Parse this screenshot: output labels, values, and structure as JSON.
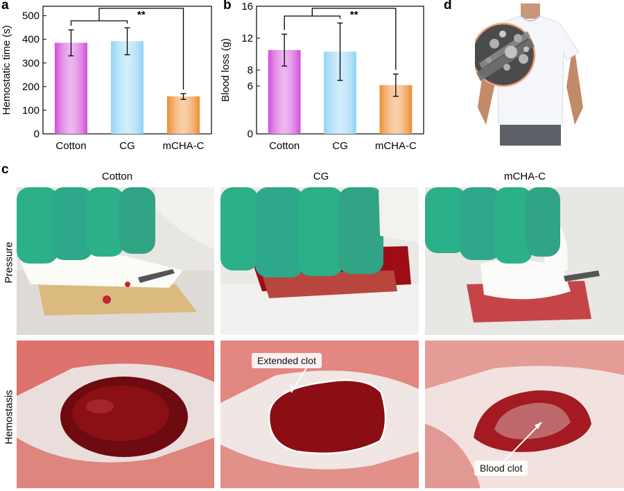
{
  "panels": {
    "a": {
      "letter": "a"
    },
    "b": {
      "letter": "b"
    },
    "c": {
      "letter": "c"
    },
    "d": {
      "letter": "d"
    }
  },
  "photo_grid": {
    "columns": [
      "Cotton",
      "CG",
      "mCHA-C"
    ],
    "rows": [
      "Pressure",
      "Hemostasis"
    ],
    "annotations": {
      "extended_clot": "Extended clot",
      "blood_clot": "Blood clot"
    }
  },
  "colors": {
    "cotton": "#d14cd9",
    "cg": "#8fd3f5",
    "mcha": "#f08a2e",
    "glove": "#2bb089",
    "blood": "#9e0d14",
    "shirt": "#f4f6f9"
  },
  "chart_data": [
    {
      "id": "a",
      "type": "bar",
      "categories": [
        "Cotton",
        "CG",
        "mCHA-C"
      ],
      "values": [
        385,
        392,
        158
      ],
      "errors": [
        55,
        57,
        12
      ],
      "ylabel": "Hemostatic time (s)",
      "ylim": [
        0,
        540
      ],
      "yticks": [
        0,
        100,
        200,
        300,
        400,
        500
      ],
      "significance": {
        "label": "**",
        "from": [
          0,
          1
        ],
        "to": 2
      },
      "grid": false
    },
    {
      "id": "b",
      "type": "bar",
      "categories": [
        "Cotton",
        "CG",
        "mCHA-C"
      ],
      "values": [
        10.5,
        10.3,
        6.1
      ],
      "errors": [
        2.0,
        3.6,
        1.4
      ],
      "ylabel": "Blood loss (g)",
      "ylim": [
        0,
        16
      ],
      "yticks": [
        0,
        6,
        8,
        12,
        16
      ],
      "significance": {
        "label": "**",
        "from": [
          0,
          1
        ],
        "to": 2
      },
      "grid": false
    }
  ]
}
